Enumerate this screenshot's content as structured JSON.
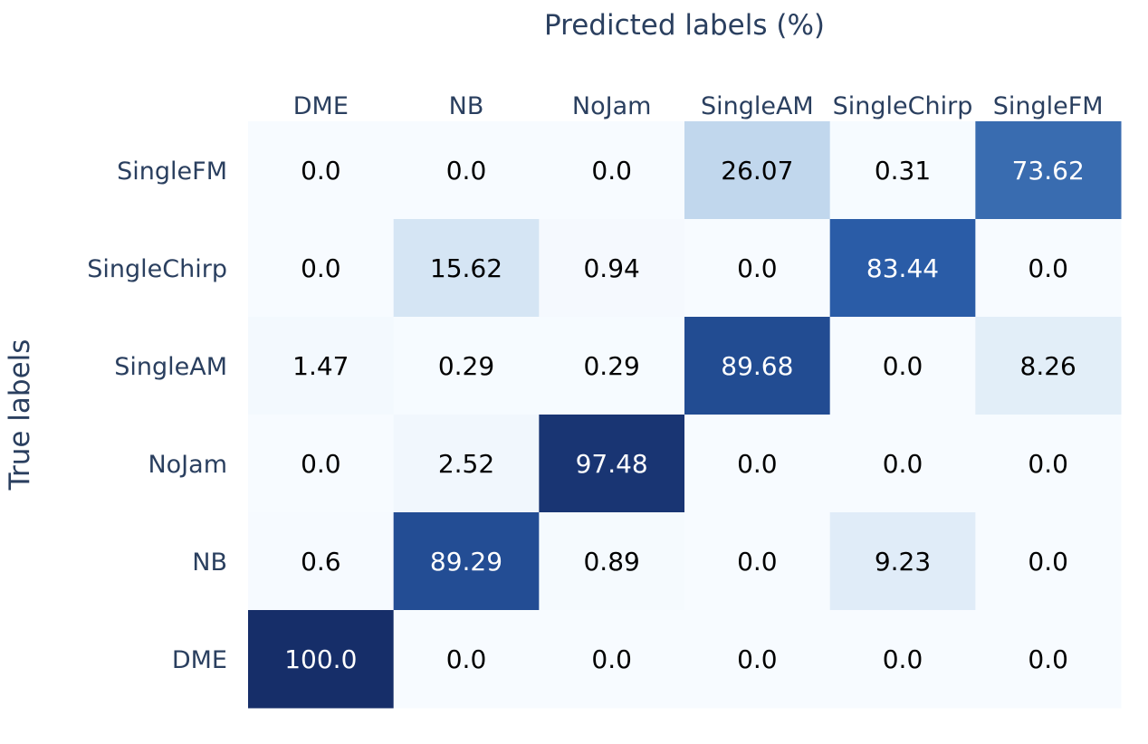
{
  "chart_data": {
    "type": "heatmap",
    "title": "",
    "xlabel": "Predicted labels (%)",
    "ylabel": "True labels",
    "x_categories": [
      "DME",
      "NB",
      "NoJam",
      "SingleAM",
      "SingleChirp",
      "SingleFM"
    ],
    "y_categories": [
      "SingleFM",
      "SingleChirp",
      "SingleAM",
      "NoJam",
      "NB",
      "DME"
    ],
    "values": [
      [
        0.0,
        0.0,
        0.0,
        26.07,
        0.31,
        73.62
      ],
      [
        0.0,
        15.62,
        0.94,
        0.0,
        83.44,
        0.0
      ],
      [
        1.47,
        0.29,
        0.29,
        89.68,
        0.0,
        8.26
      ],
      [
        0.0,
        2.52,
        97.48,
        0.0,
        0.0,
        0.0
      ],
      [
        0.6,
        89.29,
        0.89,
        0.0,
        9.23,
        0.0
      ],
      [
        100.0,
        0.0,
        0.0,
        0.0,
        0.0,
        0.0
      ]
    ],
    "value_labels": [
      [
        "0.0",
        "0.0",
        "0.0",
        "26.07",
        "0.31",
        "73.62"
      ],
      [
        "0.0",
        "15.62",
        "0.94",
        "0.0",
        "83.44",
        "0.0"
      ],
      [
        "1.47",
        "0.29",
        "0.29",
        "89.68",
        "0.0",
        "8.26"
      ],
      [
        "0.0",
        "2.52",
        "97.48",
        "0.0",
        "0.0",
        "0.0"
      ],
      [
        "0.6",
        "89.29",
        "0.89",
        "0.0",
        "9.23",
        "0.0"
      ],
      [
        "100.0",
        "0.0",
        "0.0",
        "0.0",
        "0.0",
        "0.0"
      ]
    ],
    "zmin": 0,
    "zmax": 100,
    "colorscale": "Blues",
    "colors": {
      "scale_low": "#f7fbff",
      "scale_high": "#162e69",
      "axis_text": "#2a3f5f",
      "cell_text_dark": "#000000",
      "cell_text_light": "#ffffff"
    },
    "x_axis_position": "top",
    "legend": "none",
    "grid": false
  }
}
